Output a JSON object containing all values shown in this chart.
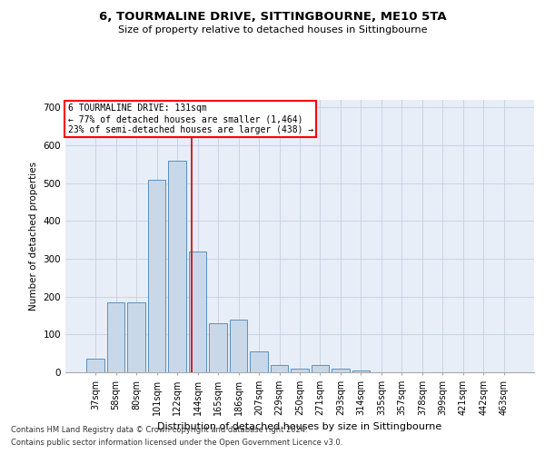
{
  "title": "6, TOURMALINE DRIVE, SITTINGBOURNE, ME10 5TA",
  "subtitle": "Size of property relative to detached houses in Sittingbourne",
  "xlabel": "Distribution of detached houses by size in Sittingbourne",
  "ylabel": "Number of detached properties",
  "categories": [
    "37sqm",
    "58sqm",
    "80sqm",
    "101sqm",
    "122sqm",
    "144sqm",
    "165sqm",
    "186sqm",
    "207sqm",
    "229sqm",
    "250sqm",
    "271sqm",
    "293sqm",
    "314sqm",
    "335sqm",
    "357sqm",
    "378sqm",
    "399sqm",
    "421sqm",
    "442sqm",
    "463sqm"
  ],
  "values": [
    35,
    185,
    185,
    510,
    560,
    320,
    130,
    140,
    55,
    20,
    10,
    20,
    10,
    5,
    0,
    0,
    0,
    0,
    0,
    0,
    0
  ],
  "bar_color": "#c8d8e8",
  "bar_edgecolor": "#5a90c0",
  "grid_color": "#c8d4e4",
  "background_color": "#e8eef8",
  "red_line_x": 4.72,
  "annotation_title": "6 TOURMALINE DRIVE: 131sqm",
  "annotation_line1": "← 77% of detached houses are smaller (1,464)",
  "annotation_line2": "23% of semi-detached houses are larger (438) →",
  "ylim": [
    0,
    720
  ],
  "yticks": [
    0,
    100,
    200,
    300,
    400,
    500,
    600,
    700
  ],
  "footnote1": "Contains HM Land Registry data © Crown copyright and database right 2024.",
  "footnote2": "Contains public sector information licensed under the Open Government Licence v3.0."
}
